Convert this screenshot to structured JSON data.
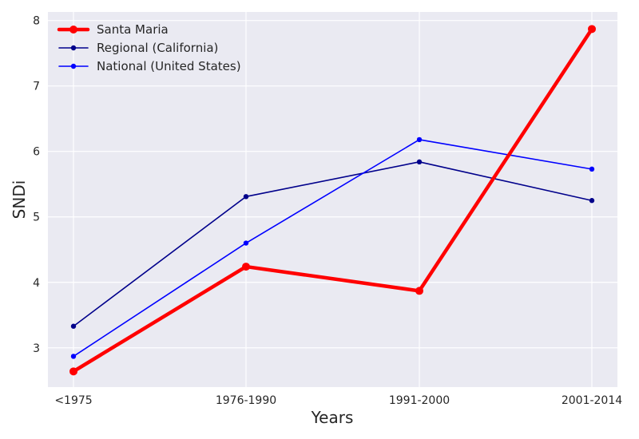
{
  "chart_data": {
    "type": "line",
    "categories": [
      "<1975",
      "1976-1990",
      "1991-2000",
      "2001-2014"
    ],
    "series": [
      {
        "name": "Santa Maria",
        "values": [
          2.64,
          4.24,
          3.87,
          7.87
        ],
        "color": "#ff0000"
      },
      {
        "name": "Regional (California)",
        "values": [
          3.33,
          5.31,
          5.84,
          5.25
        ],
        "color": "#00008b"
      },
      {
        "name": "National (United States)",
        "values": [
          2.87,
          4.6,
          6.18,
          5.73
        ],
        "color": "#0000ff"
      }
    ],
    "xlabel": "Years",
    "ylabel": "SNDi",
    "ylim": [
      2.4,
      8.13
    ],
    "yticks": [
      3,
      4,
      5,
      6,
      7,
      8
    ],
    "grid": true,
    "legend_position": "top-left",
    "background_color": "#eaeaf2",
    "grid_color": "#ffffff"
  }
}
